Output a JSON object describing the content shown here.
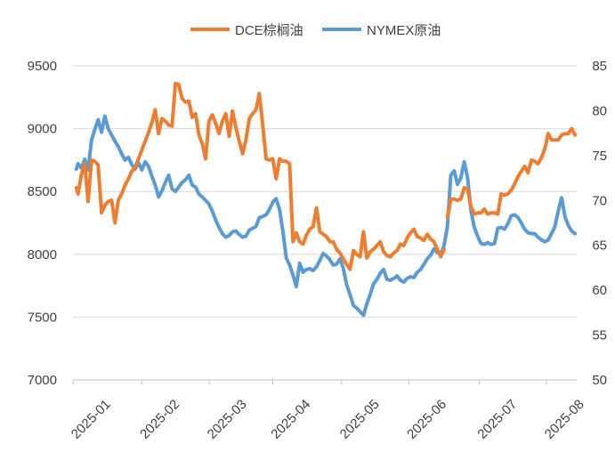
{
  "chart_data": {
    "type": "line",
    "title": "",
    "xlabel": "",
    "ylabel_left": "",
    "ylabel_right": "",
    "x_tick_labels": [
      "2025-01",
      "2025-02",
      "2025-03",
      "2025-04",
      "2025-05",
      "2025-06",
      "2025-07",
      "2025-08"
    ],
    "y_left_ticks": [
      7000,
      7500,
      8000,
      8500,
      9000,
      9500
    ],
    "y_left_tick_labels": [
      "7000",
      "7500",
      "8000",
      "8500",
      "9000",
      "9500"
    ],
    "y_left_lim": [
      7000,
      9500
    ],
    "y_right_ticks": [
      50,
      55,
      60,
      65,
      70,
      75,
      80,
      85
    ],
    "y_right_tick_labels": [
      "50",
      "55",
      "60",
      "65",
      "70",
      "75",
      "80",
      "85"
    ],
    "y_right_lim": [
      50,
      85
    ],
    "grid": "horizontal",
    "legend_position": "top-center",
    "series": [
      {
        "name": "DCE棕榈油",
        "axis": "left",
        "color": "#ED7D31",
        "x": [
          2,
          3,
          5,
          7,
          9,
          11,
          13,
          15,
          17,
          19,
          21,
          23,
          25,
          27,
          29,
          31,
          33,
          35,
          37,
          43,
          45,
          47,
          49,
          51,
          53,
          55,
          57,
          59,
          61,
          63,
          65,
          67,
          69,
          71,
          73,
          75,
          77,
          79,
          81,
          83,
          85,
          87,
          89,
          91,
          93,
          95,
          97,
          99,
          101,
          103,
          105,
          107,
          109,
          111,
          113,
          115,
          117,
          119,
          121,
          123,
          125,
          127,
          129,
          131,
          133,
          135,
          137,
          139,
          141,
          143,
          145,
          147,
          149,
          151,
          153,
          155,
          157,
          159,
          161,
          163,
          165,
          167,
          169,
          171,
          173,
          175,
          177,
          179,
          181,
          183,
          185,
          187,
          189,
          191,
          193,
          195,
          197,
          199,
          201,
          203,
          205,
          207,
          209,
          211,
          213,
          215,
          217,
          219,
          221
        ],
        "values": [
          8530,
          8480,
          8630,
          8720,
          8420,
          8750,
          8740,
          8710,
          8330,
          8390,
          8420,
          8430,
          8250,
          8430,
          8480,
          8550,
          8600,
          8660,
          8690,
          8900,
          8970,
          9050,
          9150,
          8960,
          9080,
          9060,
          9030,
          9020,
          9360,
          9350,
          9240,
          9210,
          9220,
          9090,
          9120,
          8950,
          8880,
          8760,
          9060,
          9110,
          9040,
          8960,
          9060,
          9120,
          8940,
          9140,
          9010,
          8900,
          8800,
          8910,
          9080,
          9120,
          9150,
          9280,
          9030,
          8760,
          8750,
          8760,
          8600,
          8760,
          8740,
          8740,
          8720,
          8100,
          8170,
          8100,
          8080,
          8150,
          8200,
          8220,
          8370,
          8180,
          8160,
          8140,
          8100,
          8100,
          8040,
          8010,
          7960,
          7920,
          7880,
          8030,
          8000,
          7980,
          8180,
          7970,
          8020,
          8040,
          8070,
          8100,
          8020,
          7990,
          7980,
          8010,
          8030,
          8080,
          8070,
          8130,
          8170,
          8200,
          8140,
          8130,
          8110,
          8160,
          8120,
          8100,
          8040,
          7980,
          8040
        ],
        "x2": [
          223,
          225,
          227,
          229,
          231,
          233,
          235,
          237,
          239,
          241,
          243,
          245,
          247,
          249,
          251,
          253,
          255,
          257,
          259,
          261,
          263,
          265,
          267,
          269,
          271,
          273,
          275,
          277,
          279,
          281,
          283,
          285,
          287,
          289,
          291,
          293,
          295,
          297,
          299
        ],
        "values2": [
          8290,
          8440,
          8440,
          8430,
          8440,
          8530,
          8520,
          8380,
          8320,
          8330,
          8330,
          8360,
          8320,
          8330,
          8330,
          8320,
          8480,
          8470,
          8480,
          8510,
          8560,
          8620,
          8660,
          8700,
          8650,
          8750,
          8740,
          8720,
          8770,
          8840,
          8960,
          8910,
          8910,
          8910,
          8950,
          8960,
          8960,
          9000,
          8950
        ]
      },
      {
        "name": "NYMEX原油",
        "axis": "right",
        "color": "#5B9BD5",
        "x": [
          2,
          3,
          5,
          7,
          9,
          11,
          13,
          15,
          17,
          19,
          21,
          23,
          25,
          27,
          29,
          31,
          33,
          35,
          37,
          39,
          41,
          43,
          45,
          47,
          49,
          51,
          53,
          55,
          57,
          59,
          61,
          63,
          65,
          67,
          69,
          71,
          73,
          75,
          77,
          79,
          81,
          83,
          85,
          87,
          89,
          91,
          93,
          95,
          97,
          99,
          101,
          103,
          105,
          107,
          109,
          111,
          113,
          115,
          117,
          119,
          121,
          123,
          125,
          127,
          129,
          131,
          133,
          135,
          137,
          139,
          141,
          143,
          145,
          147,
          149,
          151,
          153,
          155,
          157,
          159,
          161,
          163,
          165,
          167,
          169,
          171,
          173,
          175,
          177,
          179,
          181,
          183,
          185,
          187,
          189,
          191,
          193,
          195,
          197,
          199,
          201,
          203,
          205,
          207,
          209,
          211,
          213,
          215,
          217,
          219,
          221,
          223,
          225,
          227,
          229,
          231,
          233,
          235,
          237,
          239,
          241,
          243,
          245,
          247,
          249,
          251,
          253,
          255,
          257,
          259,
          261,
          263,
          265,
          267,
          269,
          271,
          273,
          275,
          277,
          279,
          281,
          283,
          285,
          287,
          289,
          291,
          293,
          295,
          297,
          299
        ],
        "values": [
          73.5,
          74.1,
          73.6,
          74.6,
          73.4,
          76.7,
          77.9,
          79.0,
          77.6,
          79.4,
          78.0,
          77.3,
          76.6,
          76.0,
          75.2,
          74.5,
          74.8,
          74.0,
          73.5,
          74.2,
          73.4,
          74.3,
          73.8,
          72.7,
          71.7,
          70.4,
          71.1,
          72.0,
          72.8,
          71.3,
          71.0,
          71.5,
          72.0,
          72.3,
          72.8,
          71.7,
          71.5,
          70.7,
          70.4,
          70.0,
          69.6,
          68.8,
          67.8,
          67.0,
          66.3,
          65.9,
          66.1,
          66.5,
          66.6,
          66.2,
          65.9,
          66.0,
          66.7,
          66.9,
          67.1,
          68.1,
          68.2,
          68.4,
          69.0,
          69.8,
          70.2,
          69.0,
          66.6,
          63.6,
          62.8,
          61.7,
          60.4,
          63.0,
          62.0,
          62.3,
          62.4,
          62.2,
          62.6,
          63.3,
          64.1,
          63.8,
          63.4,
          62.8,
          62.9,
          63.5,
          62.4,
          60.6,
          59.5,
          58.3,
          58.0,
          57.6,
          57.2,
          58.5,
          59.5,
          60.7,
          61.2,
          61.9,
          62.3,
          61.2,
          61.1,
          61.3,
          61.6,
          61.1,
          60.9,
          61.3,
          61.5,
          61.4,
          62.0,
          62.3,
          62.9,
          63.5,
          63.9,
          64.6,
          64.2,
          64.0,
          65.0,
          67.1,
          72.8,
          73.3,
          71.8,
          72.5,
          74.3,
          72.5,
          68.9,
          67.0,
          66.0,
          65.2,
          65.1,
          65.3,
          65.1,
          65.2,
          66.9,
          67.0,
          66.8,
          67.4,
          68.3,
          68.4,
          68.1,
          67.5,
          66.8,
          66.4,
          66.3,
          66.3,
          65.9,
          65.6,
          65.4,
          65.6,
          66.3,
          67.1,
          68.8,
          70.3,
          68.2,
          67.2,
          66.6,
          66.3
        ],
        "note": "x values are trading-day indices along the 2025-01 to 2025-08 time axis"
      }
    ],
    "x_index_range": [
      0,
      300
    ],
    "x_tick_positions": [
      0,
      41,
      81,
      119,
      160,
      200,
      242,
      282
    ]
  }
}
